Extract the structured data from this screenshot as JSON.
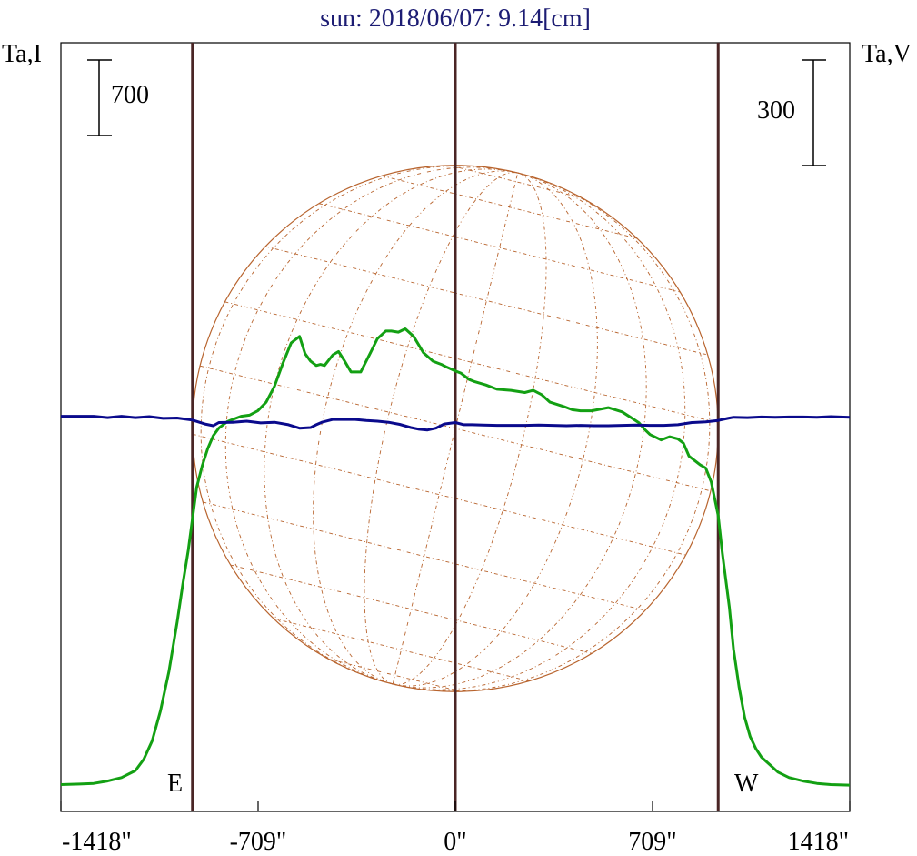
{
  "chart_data": {
    "type": "line",
    "title": "sun: 2018/06/07: 9.14[cm]",
    "left_axis_label": "Ta,I",
    "right_axis_label": "Ta,V",
    "x_tick_labels": [
      "-1418\"",
      "-709\"",
      "0\"",
      "709\"",
      "1418\""
    ],
    "x_ticks": [
      -1418,
      -709,
      0,
      709,
      1418
    ],
    "xlim": [
      -1418,
      1418
    ],
    "left_scale_bar_label": "700",
    "left_scale_bar_value": 700,
    "right_scale_bar_label": "300",
    "right_scale_bar_value": 300,
    "limb_labels": {
      "east": "E",
      "west": "W"
    },
    "limb_lines": [
      -945,
      0,
      945
    ],
    "solar_radius_arcsec": 945,
    "grid": false,
    "colors": {
      "intensity": "#13a013",
      "polarization": "#0a0a8c",
      "limb_line": "#4a2525",
      "disk": "#b8642e",
      "title": "#1c1c73",
      "frame": "#000000"
    },
    "series": [
      {
        "name": "",
        "axis": "left",
        "x": [
          -1418,
          -1350,
          -1300,
          -1250,
          -1200,
          -1150,
          -1120,
          -1090,
          -1060,
          -1030,
          -1000,
          -980,
          -960,
          -945,
          -930,
          -910,
          -890,
          -870,
          -850,
          -820,
          -800,
          -770,
          -740,
          -710,
          -680,
          -650,
          -620,
          -590,
          -560,
          -540,
          -520,
          -500,
          -485,
          -470,
          -440,
          -420,
          -400,
          -375,
          -340,
          -305,
          -280,
          -250,
          -230,
          -205,
          -180,
          -150,
          -115,
          -80,
          -50,
          -35,
          0,
          20,
          50,
          70,
          110,
          150,
          200,
          250,
          280,
          310,
          340,
          390,
          420,
          450,
          490,
          550,
          600,
          630,
          660,
          680,
          700,
          740,
          770,
          800,
          820,
          840,
          860,
          880,
          900,
          920,
          945,
          960,
          985,
          1000,
          1020,
          1040,
          1060,
          1080,
          1100,
          1130,
          1160,
          1200,
          1250,
          1300,
          1350,
          1418
        ],
        "y": [
          55,
          60,
          66,
          88,
          120,
          185,
          290,
          460,
          740,
          1100,
          1560,
          1910,
          2230,
          2520,
          2810,
          3010,
          3170,
          3290,
          3360,
          3420,
          3440,
          3470,
          3480,
          3520,
          3600,
          3750,
          3960,
          4150,
          4210,
          4050,
          3980,
          3940,
          3950,
          3940,
          4040,
          4070,
          3990,
          3880,
          3880,
          4060,
          4190,
          4260,
          4260,
          4250,
          4280,
          4210,
          4060,
          3980,
          3950,
          3930,
          3890,
          3870,
          3810,
          3790,
          3760,
          3720,
          3710,
          3690,
          3710,
          3670,
          3600,
          3560,
          3530,
          3520,
          3520,
          3550,
          3510,
          3460,
          3410,
          3350,
          3300,
          3250,
          3280,
          3260,
          3220,
          3100,
          3060,
          3020,
          2990,
          2860,
          2550,
          2200,
          1700,
          1310,
          960,
          680,
          500,
          390,
          310,
          240,
          170,
          120,
          88,
          66,
          55,
          50
        ]
      },
      {
        "name": "",
        "axis": "right",
        "x": [
          -1418,
          -1300,
          -1250,
          -1200,
          -1150,
          -1100,
          -1050,
          -1000,
          -945,
          -900,
          -870,
          -850,
          -800,
          -750,
          -700,
          -650,
          -600,
          -560,
          -520,
          -500,
          -480,
          -440,
          -400,
          -360,
          -320,
          -280,
          -240,
          -200,
          -160,
          -130,
          -100,
          -70,
          -40,
          0,
          30,
          60,
          100,
          150,
          200,
          250,
          300,
          350,
          400,
          450,
          500,
          550,
          600,
          650,
          700,
          750,
          800,
          850,
          900,
          945,
          980,
          1000,
          1050,
          1100,
          1150,
          1200,
          1250,
          1300,
          1350,
          1418
        ],
        "y": [
          14,
          14,
          10,
          14,
          10,
          13,
          8,
          9,
          3,
          -8,
          -13,
          -4,
          -3,
          0,
          -5,
          -3,
          -10,
          -20,
          -18,
          -10,
          -3,
          5,
          5,
          5,
          2,
          0,
          -3,
          -9,
          -18,
          -23,
          -25,
          -20,
          -8,
          -4,
          -10,
          -10,
          -11,
          -12,
          -12,
          -12,
          -11,
          -12,
          -13,
          -12,
          -13,
          -13,
          -12,
          -11,
          -12,
          -12,
          -10,
          -4,
          -2,
          2,
          8,
          11,
          10,
          12,
          11,
          12,
          12,
          11,
          13,
          11
        ]
      }
    ]
  }
}
